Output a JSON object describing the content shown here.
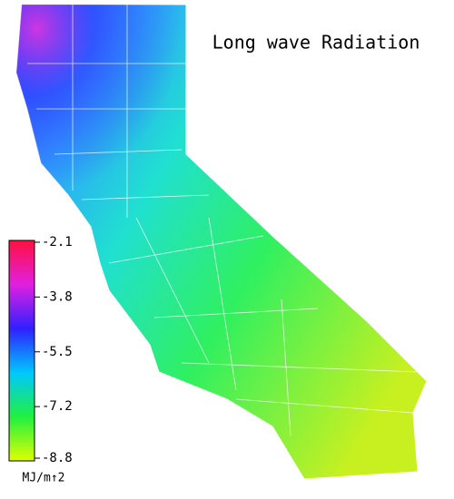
{
  "title": "Long wave Radiation",
  "colorbar": {
    "lim": [
      -2.1,
      -8.8
    ],
    "ticks": [
      -2.1,
      -3.8,
      -5.5,
      -7.2,
      -8.8
    ],
    "unit": "MJ/m↑2",
    "colors": [
      "#ff1040",
      "#e020e0",
      "#3020ff",
      "#00c8ff",
      "#20f040",
      "#e0ff00"
    ]
  }
}
